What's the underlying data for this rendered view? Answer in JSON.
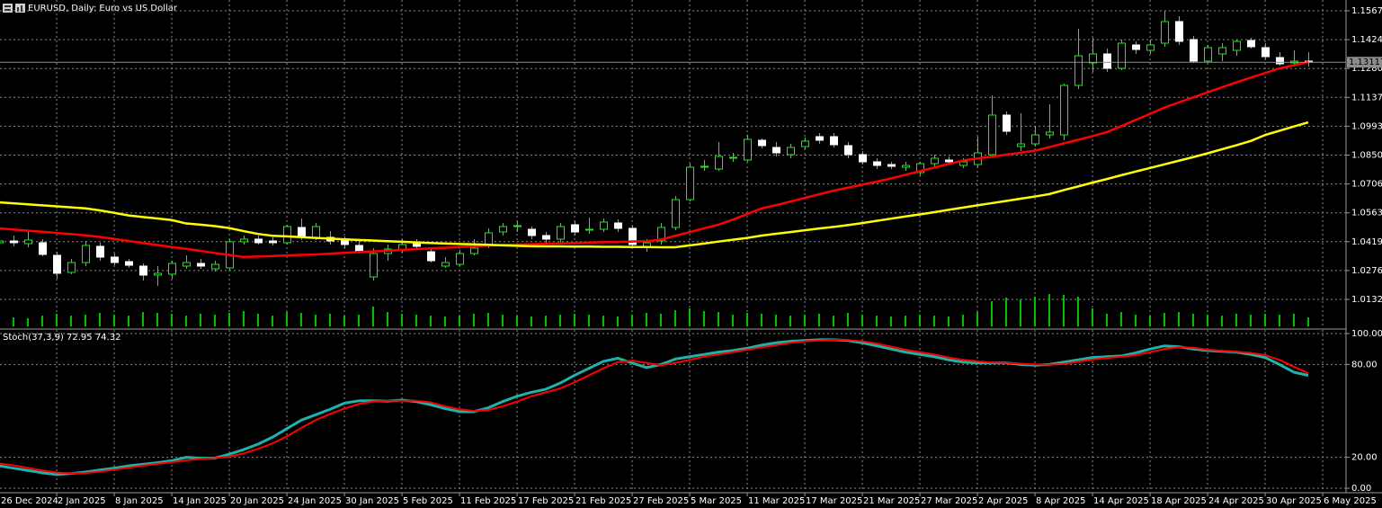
{
  "chart_data": [
    {
      "type": "candlestick",
      "title": "EURUSD, Daily:  Euro vs US Dollar",
      "categories": [
        "26 Dec 2024",
        null,
        null,
        null,
        "2 Jan 2025",
        null,
        null,
        null,
        "8 Jan 2025",
        null,
        null,
        null,
        "14 Jan 2025",
        null,
        null,
        null,
        "20 Jan 2025",
        null,
        null,
        null,
        "24 Jan 2025",
        null,
        null,
        null,
        "30 Jan 2025",
        null,
        null,
        null,
        "5 Feb 2025",
        null,
        null,
        null,
        "11 Feb 2025",
        null,
        null,
        null,
        "17 Feb 2025",
        null,
        null,
        null,
        "21 Feb 2025",
        null,
        null,
        null,
        "27 Feb 2025",
        null,
        null,
        null,
        "5 Mar 2025",
        null,
        null,
        null,
        "11 Mar 2025",
        null,
        null,
        null,
        "17 Mar 2025",
        null,
        null,
        null,
        "21 Mar 2025",
        null,
        null,
        null,
        "27 Mar 2025",
        null,
        null,
        null,
        "2 Apr 2025",
        null,
        null,
        null,
        "8 Apr 2025",
        null,
        null,
        null,
        "14 Apr 2025",
        null,
        null,
        null,
        "18 Apr 2025",
        null,
        null,
        null,
        "24 Apr 2025",
        null,
        null,
        null,
        "30 Apr 2025",
        null,
        null,
        null,
        "6 May 2025"
      ],
      "open": [
        1.04142,
        1.04231,
        1.04097,
        1.04142,
        1.03516,
        1.02667,
        1.03159,
        1.03963,
        1.03427,
        1.03203,
        1.0298,
        1.02533,
        1.02578,
        1.0298,
        1.03114,
        1.02846,
        1.02891,
        1.04187,
        1.04321,
        1.04231,
        1.04142,
        1.04902,
        1.0441,
        1.0441,
        1.04276,
        1.04008,
        1.02444,
        1.03606,
        1.03785,
        1.04097,
        1.03695,
        1.0298,
        1.03069,
        1.03606,
        1.04053,
        1.04678,
        1.04947,
        1.04812,
        1.045,
        1.04321,
        1.05036,
        1.04768,
        1.04812,
        1.05125,
        1.04857,
        1.03963,
        1.04231,
        1.04902,
        1.06288,
        1.07897,
        1.07807,
        1.08344,
        1.08255,
        1.09238,
        1.0888,
        1.08523,
        1.08925,
        1.09417,
        1.09417,
        1.0897,
        1.08523,
        1.08165,
        1.08031,
        1.07897,
        1.07629,
        1.08076,
        1.08255,
        1.07986,
        1.08031,
        1.08523,
        1.10489,
        1.08925,
        1.09059,
        1.09506,
        1.09506,
        1.11964,
        1.13082,
        1.13529,
        1.12814,
        1.13976,
        1.13708,
        1.14065,
        1.15138,
        1.14244,
        1.13171,
        1.13529,
        1.13708,
        1.14199,
        1.13842,
        1.1335,
        1.13082,
        1.13171,
        null
      ],
      "high": [
        1.04366,
        1.045,
        1.04678,
        1.04321,
        1.03695,
        1.03338,
        1.04231,
        1.04142,
        1.03606,
        1.03338,
        1.03114,
        1.0298,
        1.03248,
        1.03516,
        1.03338,
        1.03248,
        1.04321,
        1.045,
        1.045,
        1.0441,
        1.05036,
        1.05349,
        1.05125,
        1.04723,
        1.04455,
        1.04231,
        1.03874,
        1.04053,
        1.04321,
        1.04321,
        1.03874,
        1.03427,
        1.03785,
        1.04321,
        1.04857,
        1.05125,
        1.05215,
        1.04947,
        1.04678,
        1.05125,
        1.05215,
        1.05394,
        1.05349,
        1.05304,
        1.04991,
        1.04321,
        1.05125,
        1.06466,
        1.08076,
        1.08255,
        1.09148,
        1.08612,
        1.09506,
        1.09327,
        1.09148,
        1.09059,
        1.09372,
        1.09595,
        1.09595,
        1.09148,
        1.08701,
        1.08344,
        1.08165,
        1.08165,
        1.08165,
        1.08523,
        1.08433,
        1.08344,
        1.09417,
        1.11473,
        1.10668,
        1.10579,
        1.09953,
        1.11026,
        1.12054,
        1.14781,
        1.14334,
        1.13797,
        1.14244,
        1.14155,
        1.14244,
        1.15675,
        1.15406,
        1.14423,
        1.13976,
        1.14065,
        1.14244,
        1.14334,
        1.14065,
        1.13618,
        1.13708,
        1.13618,
        null
      ],
      "low": [
        1.03963,
        1.03963,
        1.03918,
        1.03471,
        1.02354,
        1.02578,
        1.0298,
        1.03248,
        1.03024,
        1.02891,
        1.02265,
        1.01997,
        1.02354,
        1.02846,
        1.02846,
        1.02712,
        1.02801,
        1.04053,
        1.04053,
        1.04008,
        1.04053,
        1.04276,
        1.04276,
        1.04053,
        1.03874,
        1.03606,
        1.02265,
        1.03248,
        1.0365,
        1.03829,
        1.03159,
        1.02891,
        1.0298,
        1.03516,
        1.03874,
        1.045,
        1.04678,
        1.04321,
        1.04142,
        1.04142,
        1.045,
        1.04589,
        1.04678,
        1.04678,
        1.03874,
        1.03695,
        1.04053,
        1.04768,
        1.06198,
        1.07718,
        1.07718,
        1.08165,
        1.08165,
        1.08836,
        1.08433,
        1.08344,
        1.08791,
        1.09059,
        1.0888,
        1.08344,
        1.08031,
        1.07807,
        1.07807,
        1.07718,
        1.07494,
        1.07897,
        1.08031,
        1.07852,
        1.07897,
        1.08433,
        1.09506,
        1.08701,
        1.08925,
        1.09327,
        1.09238,
        1.11786,
        1.12635,
        1.12635,
        1.12724,
        1.13529,
        1.13529,
        1.13887,
        1.13976,
        1.13082,
        1.13082,
        1.13171,
        1.1344,
        1.13797,
        1.13261,
        1.12948,
        1.12903,
        1.12903,
        null
      ],
      "close": [
        1.04231,
        1.04142,
        1.04276,
        1.03561,
        1.02623,
        1.03159,
        1.04008,
        1.03427,
        1.03159,
        1.03024,
        1.02533,
        1.02623,
        1.03114,
        1.03159,
        1.0298,
        1.03069,
        1.04187,
        1.04321,
        1.04142,
        1.04142,
        1.04947,
        1.04455,
        1.04947,
        1.04231,
        1.04053,
        1.0374,
        1.03606,
        1.03829,
        1.04053,
        1.03963,
        1.03248,
        1.03159,
        1.03606,
        1.03874,
        1.04634,
        1.04947,
        1.04991,
        1.045,
        1.04321,
        1.04947,
        1.04678,
        1.04812,
        1.0517,
        1.04857,
        1.04053,
        1.04142,
        1.04902,
        1.06288,
        1.07897,
        1.07942,
        1.08433,
        1.08389,
        1.09283,
        1.0897,
        1.08612,
        1.0888,
        1.09193,
        1.09238,
        1.09014,
        1.08523,
        1.08165,
        1.07986,
        1.07942,
        1.07986,
        1.08076,
        1.08344,
        1.08165,
        1.08165,
        1.08612,
        1.10489,
        1.09685,
        1.09059,
        1.09506,
        1.0964,
        1.11964,
        1.1344,
        1.13529,
        1.12814,
        1.14065,
        1.13752,
        1.13976,
        1.15138,
        1.14155,
        1.13171,
        1.13842,
        1.13842,
        1.14155,
        1.13887,
        1.13395,
        1.13037,
        1.13171,
        1.13117,
        null
      ],
      "candle_colors": {
        "up": "#000000",
        "down": "#ffffff",
        "wick": "#00ff00",
        "up_outline": "#00ff00",
        "down_outline": "#ffffff"
      },
      "series": [
        {
          "color": "#ff0000",
          "values": [
            1.0486,
            1.048,
            1.0474,
            1.0469,
            1.0463,
            1.0457,
            1.0451,
            1.0443,
            1.0433,
            1.0423,
            1.0413,
            1.0403,
            1.0393,
            1.0384,
            1.0374,
            1.0363,
            1.0353,
            1.0343,
            1.0346,
            1.0348,
            1.0351,
            1.0354,
            1.0356,
            1.036,
            1.0364,
            1.0368,
            1.0371,
            1.0375,
            1.0379,
            1.0382,
            1.0386,
            1.0389,
            1.0393,
            1.0396,
            1.04,
            1.0403,
            1.0405,
            1.0407,
            1.0409,
            1.0411,
            1.0413,
            1.0415,
            1.0417,
            1.0418,
            1.042,
            1.0422,
            1.043,
            1.0449,
            1.0467,
            1.0486,
            1.0504,
            1.0529,
            1.0557,
            1.0585,
            1.0601,
            1.0619,
            1.0637,
            1.0655,
            1.0673,
            1.0688,
            1.0703,
            1.0718,
            1.0734,
            1.0752,
            1.077,
            1.0788,
            1.0806,
            1.0823,
            1.0833,
            1.0842,
            1.0852,
            1.0862,
            1.0872,
            1.089,
            1.0908,
            1.0926,
            1.0944,
            1.0964,
            1.0994,
            1.1025,
            1.1055,
            1.1086,
            1.1112,
            1.1137,
            1.1162,
            1.1187,
            1.1212,
            1.1235,
            1.1258,
            1.1281,
            1.1297,
            1.1313,
            null
          ]
        },
        {
          "color": "#ffff00",
          "values": [
            1.0615,
            1.061,
            1.0605,
            1.06,
            1.0595,
            1.059,
            1.0585,
            1.0575,
            1.0563,
            1.055,
            1.0542,
            1.0535,
            1.0527,
            1.051,
            1.0504,
            1.0497,
            1.0487,
            1.0472,
            1.0458,
            1.0449,
            1.0446,
            1.0442,
            1.0438,
            1.0435,
            1.0431,
            1.0428,
            1.0425,
            1.0422,
            1.0419,
            1.0416,
            1.0413,
            1.041,
            1.0408,
            1.0406,
            1.0404,
            1.0401,
            1.0399,
            1.0397,
            1.0396,
            1.0396,
            1.0395,
            1.0395,
            1.0394,
            1.0394,
            1.0393,
            1.0393,
            1.0392,
            1.0392,
            1.0401,
            1.041,
            1.042,
            1.0429,
            1.0438,
            1.045,
            1.0459,
            1.0467,
            1.0476,
            1.0485,
            1.0493,
            1.0502,
            1.0512,
            1.0523,
            1.0534,
            1.0545,
            1.0555,
            1.0566,
            1.0578,
            1.0589,
            1.06,
            1.0611,
            1.0622,
            1.0633,
            1.0644,
            1.0656,
            1.0676,
            1.0694,
            1.0713,
            1.0731,
            1.075,
            1.0768,
            1.0786,
            1.0804,
            1.0822,
            1.084,
            1.0859,
            1.0879,
            1.0899,
            1.092,
            1.095,
            1.0971,
            1.0992,
            1.1013,
            null
          ]
        }
      ],
      "volume": {
        "color": "#00c000",
        "ylim": [
          0,
          100
        ],
        "values": [
          8,
          10,
          9,
          12,
          14,
          12,
          13,
          15,
          13,
          12,
          16,
          15,
          14,
          12,
          14,
          13,
          15,
          17,
          14,
          12,
          16,
          15,
          13,
          14,
          12,
          13,
          22,
          16,
          14,
          13,
          12,
          11,
          12,
          14,
          15,
          13,
          12,
          11,
          12,
          13,
          14,
          13,
          12,
          11,
          13,
          15,
          14,
          18,
          20,
          17,
          16,
          13,
          15,
          14,
          13,
          12,
          13,
          14,
          12,
          15,
          13,
          12,
          11,
          12,
          13,
          12,
          11,
          13,
          16,
          28,
          32,
          30,
          33,
          36,
          35,
          33,
          20,
          14,
          16,
          13,
          12,
          15,
          16,
          14,
          13,
          12,
          14,
          13,
          14,
          13,
          14,
          10,
          null
        ]
      },
      "ylim": [
        0.99894,
        1.16211
      ],
      "yticks": [
        1.15675,
        {
          "value": 1.1424,
          "label": "1.14240"
        },
        1.12805,
        {
          "value": 1.1137,
          "label": "1.11370"
        },
        1.09935,
        {
          "value": 1.085,
          "label": "1.08500"
        },
        1.07065,
        {
          "value": 1.0563,
          "label": "1.05630"
        },
        1.04195,
        {
          "value": 1.0276,
          "label": "1.02760"
        },
        1.01325
      ],
      "last_price": 1.13117,
      "grid": true
    },
    {
      "type": "line",
      "title": "Stoch(37,3,9) 72.95 74.32",
      "series": [
        {
          "color": "#20b2aa",
          "values": [
            14.5,
            13,
            11.5,
            10,
            8.9,
            9.5,
            10.5,
            11.8,
            13,
            14.5,
            15.5,
            16.5,
            17.8,
            20,
            19.5,
            19.5,
            22,
            25,
            28.5,
            33,
            38.5,
            44,
            47.5,
            51,
            55,
            56.5,
            56.5,
            56.3,
            57,
            56,
            54,
            51.5,
            49.5,
            49.5,
            52,
            56,
            59.5,
            62,
            64,
            68,
            73,
            77.5,
            82,
            84,
            81,
            78,
            80,
            83.5,
            85,
            86.5,
            88,
            89,
            90.5,
            92.5,
            94,
            95,
            95.5,
            96,
            96,
            95.5,
            94,
            92,
            90,
            88,
            86.5,
            85,
            83,
            81.5,
            81,
            81,
            81,
            80,
            79.5,
            80,
            81.5,
            83,
            84.5,
            85,
            85.5,
            87.5,
            90,
            92,
            91.5,
            90,
            89,
            88.5,
            88,
            86.5,
            84.5,
            80,
            75,
            72.95,
            null
          ]
        },
        {
          "color": "#ff0000",
          "values": [
            16,
            14.8,
            13.2,
            11.5,
            10.2,
            9.6,
            9.8,
            10.8,
            12,
            13.3,
            14.6,
            15.8,
            16.8,
            18,
            19,
            19.5,
            20.5,
            22.5,
            25.5,
            29,
            33.5,
            39,
            44,
            48,
            51.5,
            54.5,
            56,
            56.5,
            56.5,
            56.5,
            55.5,
            53,
            51,
            50,
            50.5,
            53,
            56,
            59.5,
            62,
            64.5,
            68.5,
            73,
            77.5,
            81.5,
            82.5,
            81,
            79.5,
            81,
            83,
            85,
            86.5,
            88,
            89.5,
            91,
            92.5,
            94,
            95,
            95.5,
            96,
            95.8,
            95,
            93.5,
            91.5,
            89.5,
            88,
            86.5,
            84.5,
            83,
            82,
            81.2,
            81,
            80.5,
            80,
            79.8,
            80.3,
            81.8,
            83.2,
            84.2,
            85,
            86,
            88,
            90,
            91.2,
            90.8,
            89.5,
            88.8,
            88.2,
            87.5,
            86,
            83,
            78.5,
            74.32,
            null
          ]
        }
      ],
      "ylim": [
        -2.3,
        102.3
      ],
      "yticks": [
        {
          "value": 100,
          "label": "100.00"
        },
        {
          "value": 80,
          "label": "80.00"
        },
        {
          "value": 20,
          "label": "20.00"
        },
        {
          "value": 0,
          "label": "0.00"
        }
      ],
      "grid": true
    }
  ]
}
